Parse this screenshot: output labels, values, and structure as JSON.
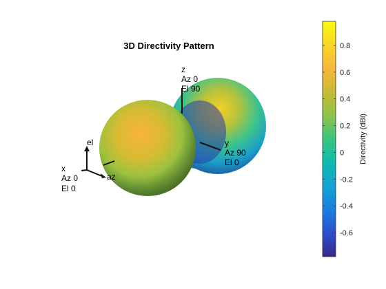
{
  "chart_data": {
    "type": "3d-surface",
    "title": "3D Directivity Pattern",
    "pattern": "dipole-lobes-along-x-axis",
    "colorbar": {
      "label": "Directivity (dBi)",
      "range": [
        -0.78,
        0.98
      ],
      "ticks": [
        -0.6,
        -0.4,
        -0.2,
        0,
        0.2,
        0.4,
        0.6,
        0.8
      ],
      "tick_labels": [
        "-0.6",
        "-0.4",
        "-0.2",
        "0",
        "0.2",
        "0.4",
        "0.6",
        "0.8"
      ],
      "colormap": "parula",
      "colormap_stops": [
        "#352a87",
        "#2c4fcf",
        "#1a7fe0",
        "#15a2d3",
        "#0fb9b0",
        "#3bc47f",
        "#8cc34a",
        "#c8bb34",
        "#f7b73a",
        "#f8d628",
        "#f9fb0e"
      ]
    },
    "axis_labels": [
      {
        "name": "z",
        "lines": [
          "z",
          "Az 0",
          "El 90"
        ]
      },
      {
        "name": "y",
        "lines": [
          "y",
          "Az 90",
          "El 0"
        ]
      },
      {
        "name": "x",
        "lines": [
          "x",
          "Az 0",
          "El 0"
        ]
      }
    ],
    "triad_labels": {
      "el": "el",
      "az": "az"
    }
  }
}
